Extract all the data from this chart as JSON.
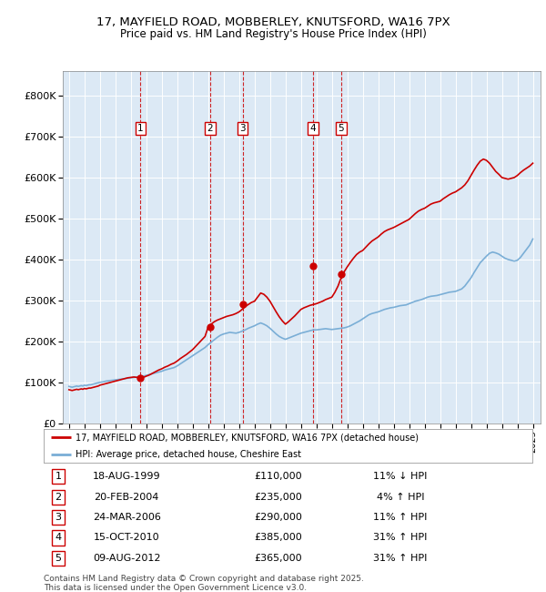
{
  "title_line1": "17, MAYFIELD ROAD, MOBBERLEY, KNUTSFORD, WA16 7PX",
  "title_line2": "Price paid vs. HM Land Registry's House Price Index (HPI)",
  "bg_color": "#dce9f5",
  "red_line_color": "#cc0000",
  "blue_line_color": "#7aaed6",
  "red_line_label": "17, MAYFIELD ROAD, MOBBERLEY, KNUTSFORD, WA16 7PX (detached house)",
  "blue_line_label": "HPI: Average price, detached house, Cheshire East",
  "yticks": [
    0,
    100000,
    200000,
    300000,
    400000,
    500000,
    600000,
    700000,
    800000
  ],
  "ylim": [
    0,
    860000
  ],
  "xlim_start": 1994.6,
  "xlim_end": 2025.5,
  "xticks": [
    1995,
    1996,
    1997,
    1998,
    1999,
    2000,
    2001,
    2002,
    2003,
    2004,
    2005,
    2006,
    2007,
    2008,
    2009,
    2010,
    2011,
    2012,
    2013,
    2014,
    2015,
    2016,
    2017,
    2018,
    2019,
    2020,
    2021,
    2022,
    2023,
    2024,
    2025
  ],
  "sale_points": [
    {
      "num": 1,
      "date": "18-AUG-1999",
      "year": 1999.63,
      "price": 110000,
      "pct": "11%",
      "dir": "↓"
    },
    {
      "num": 2,
      "date": "20-FEB-2004",
      "year": 2004.13,
      "price": 235000,
      "pct": "4%",
      "dir": "↑"
    },
    {
      "num": 3,
      "date": "24-MAR-2006",
      "year": 2006.23,
      "price": 290000,
      "pct": "11%",
      "dir": "↑"
    },
    {
      "num": 4,
      "date": "15-OCT-2010",
      "year": 2010.79,
      "price": 385000,
      "pct": "31%",
      "dir": "↑"
    },
    {
      "num": 5,
      "date": "09-AUG-2012",
      "year": 2012.61,
      "price": 365000,
      "pct": "31%",
      "dir": "↑"
    }
  ],
  "hpi_x": [
    1995.0,
    1995.1,
    1995.2,
    1995.3,
    1995.4,
    1995.5,
    1995.6,
    1995.7,
    1995.8,
    1995.9,
    1996.0,
    1996.1,
    1996.2,
    1996.3,
    1996.4,
    1996.5,
    1996.6,
    1996.7,
    1996.8,
    1996.9,
    1997.0,
    1997.2,
    1997.4,
    1997.6,
    1997.8,
    1998.0,
    1998.2,
    1998.4,
    1998.6,
    1998.8,
    1999.0,
    1999.2,
    1999.4,
    1999.6,
    1999.8,
    2000.0,
    2000.2,
    2000.4,
    2000.6,
    2000.8,
    2001.0,
    2001.2,
    2001.4,
    2001.6,
    2001.8,
    2002.0,
    2002.2,
    2002.4,
    2002.6,
    2002.8,
    2003.0,
    2003.2,
    2003.4,
    2003.6,
    2003.8,
    2004.0,
    2004.2,
    2004.4,
    2004.6,
    2004.8,
    2005.0,
    2005.2,
    2005.4,
    2005.6,
    2005.8,
    2006.0,
    2006.2,
    2006.4,
    2006.6,
    2006.8,
    2007.0,
    2007.2,
    2007.4,
    2007.6,
    2007.8,
    2008.0,
    2008.2,
    2008.4,
    2008.6,
    2008.8,
    2009.0,
    2009.2,
    2009.4,
    2009.6,
    2009.8,
    2010.0,
    2010.2,
    2010.4,
    2010.6,
    2010.8,
    2011.0,
    2011.2,
    2011.4,
    2011.6,
    2011.8,
    2012.0,
    2012.2,
    2012.4,
    2012.6,
    2012.8,
    2013.0,
    2013.2,
    2013.4,
    2013.6,
    2013.8,
    2014.0,
    2014.2,
    2014.4,
    2014.6,
    2014.8,
    2015.0,
    2015.2,
    2015.4,
    2015.6,
    2015.8,
    2016.0,
    2016.2,
    2016.4,
    2016.6,
    2016.8,
    2017.0,
    2017.2,
    2017.4,
    2017.6,
    2017.8,
    2018.0,
    2018.2,
    2018.4,
    2018.6,
    2018.8,
    2019.0,
    2019.2,
    2019.4,
    2019.6,
    2019.8,
    2020.0,
    2020.2,
    2020.4,
    2020.6,
    2020.8,
    2021.0,
    2021.2,
    2021.4,
    2021.6,
    2021.8,
    2022.0,
    2022.2,
    2022.4,
    2022.6,
    2022.8,
    2023.0,
    2023.2,
    2023.4,
    2023.6,
    2023.8,
    2024.0,
    2024.2,
    2024.4,
    2024.6,
    2024.8,
    2025.0
  ],
  "hpi_y": [
    90000,
    89000,
    88000,
    89000,
    90000,
    91000,
    90000,
    91000,
    92000,
    91000,
    93000,
    92000,
    93000,
    94000,
    94000,
    95000,
    96000,
    97000,
    98000,
    99000,
    100000,
    101000,
    103000,
    104000,
    105000,
    106000,
    107000,
    108000,
    109000,
    110000,
    111000,
    112000,
    113000,
    114000,
    115000,
    117000,
    119000,
    121000,
    123000,
    125000,
    127000,
    130000,
    132000,
    134000,
    136000,
    140000,
    145000,
    150000,
    155000,
    160000,
    165000,
    170000,
    175000,
    180000,
    185000,
    192000,
    198000,
    204000,
    210000,
    215000,
    218000,
    220000,
    222000,
    221000,
    220000,
    222000,
    225000,
    228000,
    232000,
    235000,
    238000,
    242000,
    245000,
    242000,
    238000,
    232000,
    225000,
    218000,
    212000,
    208000,
    205000,
    208000,
    211000,
    214000,
    217000,
    220000,
    222000,
    224000,
    226000,
    228000,
    228000,
    229000,
    230000,
    231000,
    230000,
    229000,
    230000,
    231000,
    232000,
    233000,
    235000,
    238000,
    242000,
    246000,
    250000,
    255000,
    260000,
    265000,
    268000,
    270000,
    272000,
    275000,
    278000,
    280000,
    282000,
    283000,
    285000,
    287000,
    288000,
    289000,
    292000,
    295000,
    298000,
    300000,
    302000,
    305000,
    308000,
    310000,
    311000,
    312000,
    314000,
    316000,
    318000,
    320000,
    321000,
    322000,
    325000,
    328000,
    335000,
    345000,
    355000,
    368000,
    380000,
    392000,
    400000,
    408000,
    415000,
    418000,
    416000,
    413000,
    408000,
    403000,
    400000,
    398000,
    396000,
    398000,
    405000,
    415000,
    425000,
    435000,
    450000
  ],
  "red_x": [
    1995.0,
    1995.1,
    1995.2,
    1995.3,
    1995.4,
    1995.5,
    1995.6,
    1995.7,
    1995.8,
    1995.9,
    1996.0,
    1996.1,
    1996.2,
    1996.3,
    1996.4,
    1996.5,
    1996.6,
    1996.7,
    1996.8,
    1996.9,
    1997.0,
    1997.2,
    1997.4,
    1997.6,
    1997.8,
    1998.0,
    1998.2,
    1998.4,
    1998.6,
    1998.8,
    1999.0,
    1999.2,
    1999.4,
    1999.6,
    1999.8,
    2000.0,
    2000.2,
    2000.4,
    2000.6,
    2000.8,
    2001.0,
    2001.2,
    2001.4,
    2001.6,
    2001.8,
    2002.0,
    2002.2,
    2002.4,
    2002.6,
    2002.8,
    2003.0,
    2003.2,
    2003.4,
    2003.6,
    2003.8,
    2004.0,
    2004.2,
    2004.4,
    2004.6,
    2004.8,
    2005.0,
    2005.2,
    2005.4,
    2005.6,
    2005.8,
    2006.0,
    2006.2,
    2006.4,
    2006.6,
    2006.8,
    2007.0,
    2007.2,
    2007.4,
    2007.6,
    2007.8,
    2008.0,
    2008.2,
    2008.4,
    2008.6,
    2008.8,
    2009.0,
    2009.2,
    2009.4,
    2009.6,
    2009.8,
    2010.0,
    2010.2,
    2010.4,
    2010.6,
    2010.8,
    2011.0,
    2011.2,
    2011.4,
    2011.6,
    2011.8,
    2012.0,
    2012.2,
    2012.4,
    2012.6,
    2012.8,
    2013.0,
    2013.2,
    2013.4,
    2013.6,
    2013.8,
    2014.0,
    2014.2,
    2014.4,
    2014.6,
    2014.8,
    2015.0,
    2015.2,
    2015.4,
    2015.6,
    2015.8,
    2016.0,
    2016.2,
    2016.4,
    2016.6,
    2016.8,
    2017.0,
    2017.2,
    2017.4,
    2017.6,
    2017.8,
    2018.0,
    2018.2,
    2018.4,
    2018.6,
    2018.8,
    2019.0,
    2019.2,
    2019.4,
    2019.6,
    2019.8,
    2020.0,
    2020.2,
    2020.4,
    2020.6,
    2020.8,
    2021.0,
    2021.2,
    2021.4,
    2021.6,
    2021.8,
    2022.0,
    2022.2,
    2022.4,
    2022.6,
    2022.8,
    2023.0,
    2023.2,
    2023.4,
    2023.6,
    2023.8,
    2024.0,
    2024.2,
    2024.4,
    2024.6,
    2024.8,
    2025.0
  ],
  "red_y": [
    82000,
    81000,
    80000,
    81000,
    82000,
    83000,
    82000,
    83000,
    84000,
    83000,
    85000,
    84000,
    85000,
    86000,
    86000,
    87000,
    88000,
    89000,
    90000,
    91000,
    93000,
    95000,
    97000,
    99000,
    101000,
    103000,
    105000,
    107000,
    109000,
    111000,
    112000,
    113000,
    112000,
    111000,
    112000,
    115000,
    118000,
    122000,
    126000,
    130000,
    133000,
    137000,
    140000,
    144000,
    147000,
    152000,
    158000,
    163000,
    168000,
    174000,
    180000,
    188000,
    196000,
    204000,
    212000,
    235000,
    242000,
    248000,
    252000,
    255000,
    258000,
    261000,
    263000,
    265000,
    268000,
    272000,
    278000,
    285000,
    290000,
    295000,
    298000,
    308000,
    318000,
    315000,
    308000,
    298000,
    285000,
    272000,
    260000,
    250000,
    242000,
    248000,
    255000,
    262000,
    270000,
    278000,
    282000,
    285000,
    288000,
    290000,
    292000,
    295000,
    298000,
    302000,
    305000,
    308000,
    320000,
    335000,
    355000,
    370000,
    382000,
    393000,
    403000,
    412000,
    418000,
    422000,
    430000,
    438000,
    445000,
    450000,
    455000,
    462000,
    468000,
    472000,
    475000,
    478000,
    482000,
    486000,
    490000,
    494000,
    498000,
    505000,
    512000,
    518000,
    522000,
    525000,
    530000,
    535000,
    538000,
    540000,
    542000,
    548000,
    553000,
    558000,
    562000,
    565000,
    570000,
    575000,
    582000,
    592000,
    605000,
    618000,
    630000,
    640000,
    645000,
    642000,
    635000,
    625000,
    615000,
    608000,
    600000,
    598000,
    596000,
    598000,
    600000,
    605000,
    612000,
    618000,
    623000,
    628000,
    635000
  ],
  "footnote": "Contains HM Land Registry data © Crown copyright and database right 2025.\nThis data is licensed under the Open Government Licence v3.0.",
  "dashed_line_color": "#cc0000",
  "num_box_color": "#ffffff",
  "num_box_edge": "#cc0000"
}
